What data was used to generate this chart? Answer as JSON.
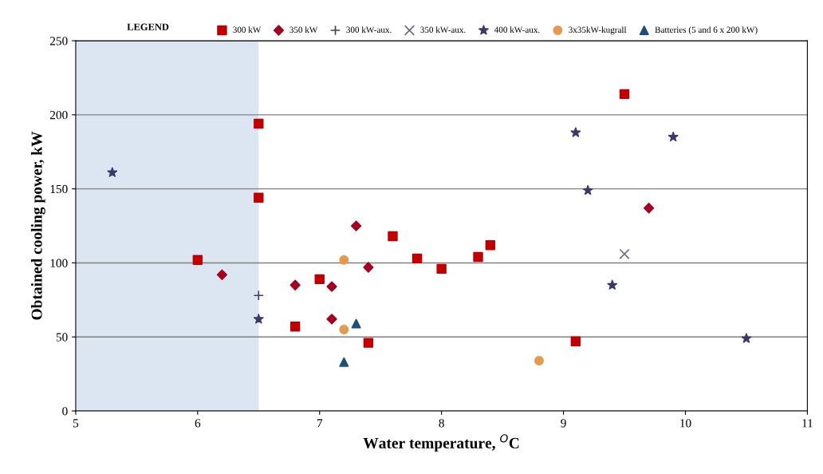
{
  "chart_data": {
    "type": "scatter",
    "xlabel": "Water temperature, $^{O}$C",
    "ylabel": "Obtained cooling power, kW",
    "legend_title": "LEGEND",
    "xlim": [
      5,
      11
    ],
    "xticks": [
      5,
      6,
      7,
      8,
      9,
      10,
      11
    ],
    "ylim": [
      0,
      250
    ],
    "yticks": [
      0,
      50,
      100,
      150,
      200,
      250
    ],
    "grid": "y",
    "legend": "top",
    "bands": [
      {
        "axis": "x",
        "from": 5,
        "to": 6.5,
        "color": "#dce6f2"
      }
    ],
    "series": [
      {
        "name": "300 kW",
        "color": "#c00000",
        "marker": "square",
        "x": [
          6.0,
          6.5,
          6.5,
          6.8,
          7.0,
          7.4,
          7.6,
          7.8,
          8.0,
          8.3,
          8.4,
          9.1,
          9.5
        ],
        "values": [
          102,
          194,
          144,
          57,
          89,
          46,
          118,
          103,
          96,
          104,
          112,
          47,
          214
        ]
      },
      {
        "name": "350 kW",
        "color": "#a50021",
        "marker": "diamond",
        "x": [
          6.2,
          6.8,
          7.1,
          7.1,
          7.3,
          7.4,
          9.7
        ],
        "values": [
          92,
          85,
          84,
          62,
          125,
          97,
          137
        ]
      },
      {
        "name": "300 kW-aux.",
        "color": "#404060",
        "marker": "cross",
        "x": [
          6.5
        ],
        "values": [
          78
        ]
      },
      {
        "name": "350 kW-aux.",
        "color": "#6a6a8a",
        "marker": "x",
        "x": [
          9.5
        ],
        "values": [
          106
        ]
      },
      {
        "name": "400 kW-aux.",
        "color": "#3a3a6a",
        "marker": "star",
        "x": [
          5.3,
          6.5,
          9.1,
          9.2,
          9.4,
          9.9,
          10.5
        ],
        "values": [
          161,
          62,
          188,
          149,
          85,
          185,
          49
        ]
      },
      {
        "name": "3x35kW-kugrall",
        "color": "#e59a50",
        "marker": "circle",
        "x": [
          7.2,
          7.2,
          8.8
        ],
        "values": [
          102,
          55,
          34
        ]
      },
      {
        "name": "Batteries (5 and 6 x 200 kW)",
        "color": "#1f4e79",
        "marker": "triangle",
        "x": [
          7.3,
          7.2
        ],
        "values": [
          59,
          33
        ]
      }
    ]
  }
}
